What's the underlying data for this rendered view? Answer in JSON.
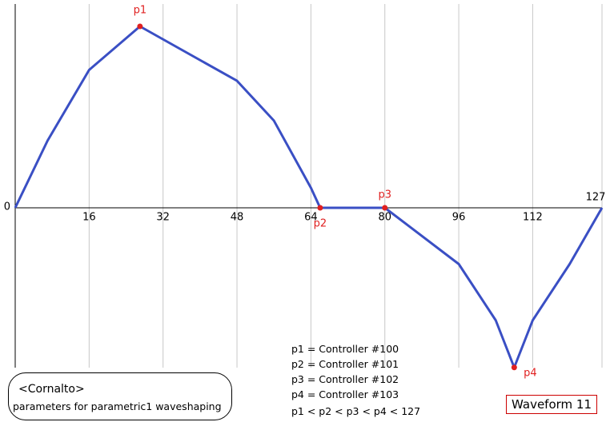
{
  "chart_data": {
    "type": "line",
    "x": [
      0,
      7,
      16,
      27,
      48,
      56,
      64,
      66,
      80,
      96,
      104,
      108,
      112,
      120,
      127
    ],
    "series": [
      {
        "color": "#3a4fc4",
        "values": [
          0,
          0.37,
          0.76,
          1,
          0.7,
          0.48,
          0.11,
          0,
          0,
          -0.31,
          -0.62,
          -0.88,
          -0.62,
          -0.31,
          0
        ]
      }
    ],
    "control_points": {
      "labels": [
        "p1",
        "p2",
        "p3",
        "p4"
      ],
      "x": [
        27,
        66,
        80,
        108
      ],
      "values": [
        1,
        0,
        0,
        -0.88
      ],
      "color": "#e02020"
    },
    "xlim": [
      0,
      127
    ],
    "xticks": [
      16,
      32,
      48,
      64,
      80,
      96,
      112,
      127
    ],
    "ylim": [
      -1,
      1
    ],
    "yticks": [
      0
    ],
    "grid": true
  },
  "caption_box": {
    "title": "<Cornalto>",
    "text": "parameters for parametric1 waveshaping"
  },
  "legend_text": [
    "p1 = Controller #100",
    "p2 = Controller #101",
    "p3 = Controller #102",
    "p4 = Controller #103",
    "p1 < p2 < p3 < p4 < 127"
  ],
  "badge": "Waveform 11"
}
